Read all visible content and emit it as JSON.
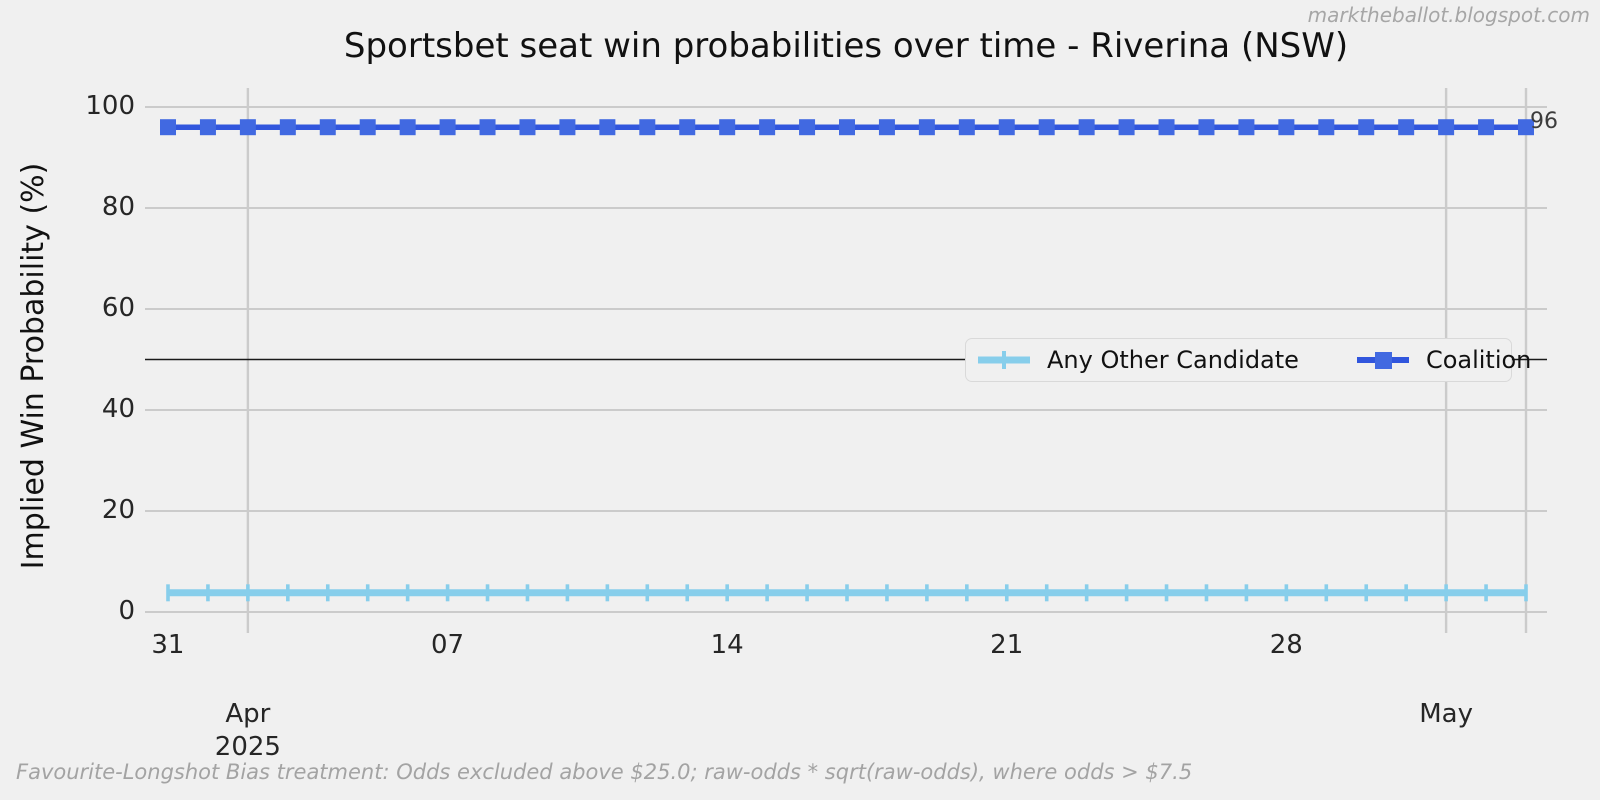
{
  "watermark": "marktheballot.blogspot.com",
  "caption": "Favourite-Longshot Bias treatment: Odds excluded above $25.0; raw-odds * sqrt(raw-odds), where odds > $7.5",
  "chart_data": {
    "type": "line",
    "title": "Sportsbet seat win probabilities over time - Riverina (NSW)",
    "xlabel": "",
    "ylabel": "Implied Win Probability (%)",
    "ylim": [
      0,
      100
    ],
    "y_ticks": [
      0,
      20,
      40,
      60,
      80,
      100
    ],
    "reference_line_y": 50,
    "grid": true,
    "legend_position": "center-right",
    "dates": [
      "2025-03-30",
      "2025-03-31",
      "2025-04-01",
      "2025-04-02",
      "2025-04-03",
      "2025-04-04",
      "2025-04-05",
      "2025-04-06",
      "2025-04-07",
      "2025-04-08",
      "2025-04-09",
      "2025-04-10",
      "2025-04-11",
      "2025-04-12",
      "2025-04-13",
      "2025-04-14",
      "2025-04-15",
      "2025-04-16",
      "2025-04-17",
      "2025-04-18",
      "2025-04-19",
      "2025-04-20",
      "2025-04-21",
      "2025-04-22",
      "2025-04-23",
      "2025-04-24",
      "2025-04-25",
      "2025-04-26",
      "2025-04-27",
      "2025-04-28",
      "2025-04-29",
      "2025-04-30",
      "2025-05-01",
      "2025-05-02",
      "2025-05-03"
    ],
    "x_minor_ticks": [
      {
        "label": "31",
        "date": "2025-03-31"
      },
      {
        "label": "07",
        "date": "2025-04-07"
      },
      {
        "label": "14",
        "date": "2025-04-14"
      },
      {
        "label": "21",
        "date": "2025-04-21"
      },
      {
        "label": "28",
        "date": "2025-04-28"
      }
    ],
    "x_major_ticks": [
      {
        "line1": "Apr",
        "line2": "2025",
        "date": "2025-04-01"
      },
      {
        "line1": "May",
        "line2": "",
        "date": "2025-05-01"
      }
    ],
    "x_gridline_dates": [
      "2025-04-01",
      "2025-05-01",
      "2025-05-03"
    ],
    "series": [
      {
        "name": "Any Other Candidate",
        "color": "#87ceeb",
        "marker": "vline",
        "end_label": "",
        "values": [
          3.8,
          3.8,
          3.8,
          3.8,
          3.8,
          3.8,
          3.8,
          3.8,
          3.8,
          3.8,
          3.8,
          3.8,
          3.8,
          3.8,
          3.8,
          3.8,
          3.8,
          3.8,
          3.8,
          3.8,
          3.8,
          3.8,
          3.8,
          3.8,
          3.8,
          3.8,
          3.8,
          3.8,
          3.8,
          3.8,
          3.8,
          3.8,
          3.8,
          3.8,
          3.8
        ]
      },
      {
        "name": "Coalition",
        "color": "#4169e1",
        "line_color": "#3156dd",
        "marker": "square",
        "end_label": "96",
        "values": [
          96,
          96,
          96,
          96,
          96,
          96,
          96,
          96,
          96,
          96,
          96,
          96,
          96,
          96,
          96,
          96,
          96,
          96,
          96,
          96,
          96,
          96,
          96,
          96,
          96,
          96,
          96,
          96,
          96,
          96,
          96,
          96,
          96,
          96,
          96
        ]
      }
    ],
    "colors": {
      "background": "#f0f0f0",
      "gridline": "#cbcbcb",
      "reference_line": "#1a1a1a",
      "any_other_candidate": "#87ceeb",
      "coalition": "#4169e1"
    }
  }
}
